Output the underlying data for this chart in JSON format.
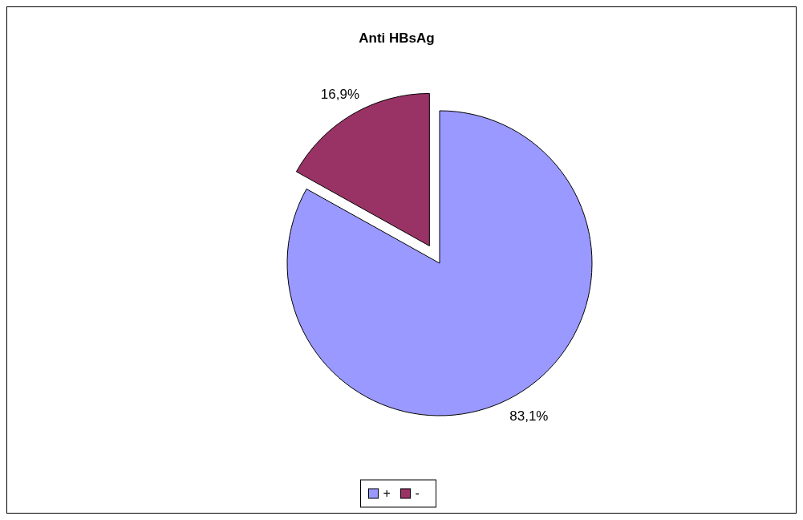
{
  "chart_data": {
    "type": "pie",
    "title": "Anti HBsAg",
    "categories": [
      "+",
      "-"
    ],
    "values": [
      83.1,
      16.9
    ],
    "colors": [
      "#9999ff",
      "#993366"
    ],
    "value_labels": [
      "83,1%",
      "16,9%"
    ],
    "legend": "bottom"
  }
}
